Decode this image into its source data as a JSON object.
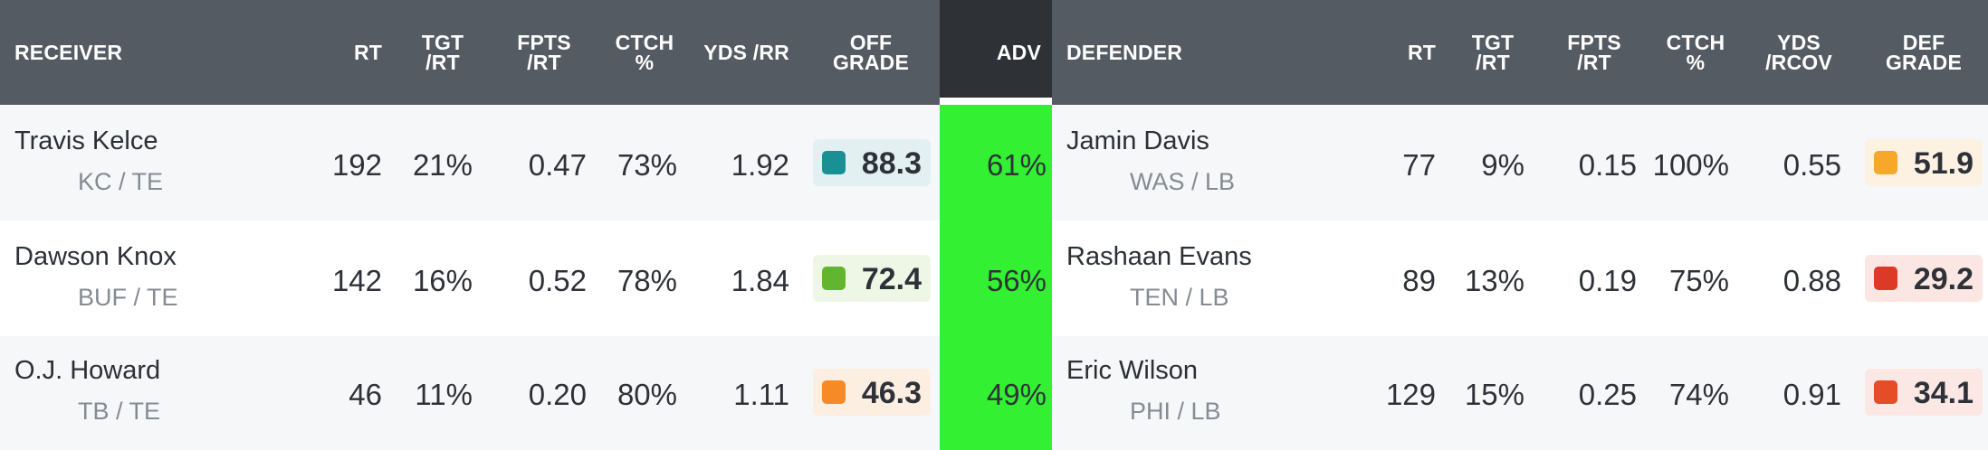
{
  "header": {
    "receiver": "RECEIVER",
    "rt": "RT",
    "tgt_rt": "TGT\n/RT",
    "fpts_rt": "FPTS\n/RT",
    "ctch": "CTCH\n%",
    "yds_rr": "YDS /RR",
    "off_grade": "OFF\nGRADE",
    "adv": "ADV",
    "defender": "DEFENDER",
    "def_rt": "RT",
    "def_tgt_rt": "TGT\n/RT",
    "def_fpts_rt": "FPTS\n/RT",
    "def_ctch": "CTCH\n%",
    "yds_rcov": "YDS\n/RCOV",
    "def_grade": "DEF\nGRADE"
  },
  "colors": {
    "header_bg": "#555b63",
    "adv_header_bg": "#2e3237",
    "adv_column_bg": "#33f033"
  },
  "rows": [
    {
      "receiver": {
        "name": "Travis Kelce",
        "team_pos": "KC / TE",
        "rt": "192",
        "tgt_rt": "21%",
        "fpts_rt": "0.47",
        "ctch": "73%",
        "yds_rr": "1.92",
        "grade": "88.3",
        "grade_color": "#1a8f94",
        "grade_bg": "#e3f0f1"
      },
      "adv": "61%",
      "defender": {
        "name": "Jamin Davis",
        "team_pos": "WAS / LB",
        "rt": "77",
        "tgt_rt": "9%",
        "fpts_rt": "0.15",
        "ctch": "100%",
        "yds_rcov": "0.55",
        "grade": "51.9",
        "grade_color": "#f7a72a",
        "grade_bg": "#fdf1e2"
      }
    },
    {
      "receiver": {
        "name": "Dawson Knox",
        "team_pos": "BUF / TE",
        "rt": "142",
        "tgt_rt": "16%",
        "fpts_rt": "0.52",
        "ctch": "78%",
        "yds_rr": "1.84",
        "grade": "72.4",
        "grade_color": "#62b52e",
        "grade_bg": "#eef6e6"
      },
      "adv": "56%",
      "defender": {
        "name": "Rashaan Evans",
        "team_pos": "TEN / LB",
        "rt": "89",
        "tgt_rt": "13%",
        "fpts_rt": "0.19",
        "ctch": "75%",
        "yds_rcov": "0.88",
        "grade": "29.2",
        "grade_color": "#dc3a26",
        "grade_bg": "#fbe6e3"
      }
    },
    {
      "receiver": {
        "name": "O.J. Howard",
        "team_pos": "TB / TE",
        "rt": "46",
        "tgt_rt": "11%",
        "fpts_rt": "0.20",
        "ctch": "80%",
        "yds_rr": "1.11",
        "grade": "46.3",
        "grade_color": "#f68a26",
        "grade_bg": "#fdeee2"
      },
      "adv": "49%",
      "defender": {
        "name": "Eric Wilson",
        "team_pos": "PHI / LB",
        "rt": "129",
        "tgt_rt": "15%",
        "fpts_rt": "0.25",
        "ctch": "74%",
        "yds_rcov": "0.91",
        "grade": "34.1",
        "grade_color": "#e44d26",
        "grade_bg": "#fbe7e3"
      }
    }
  ]
}
